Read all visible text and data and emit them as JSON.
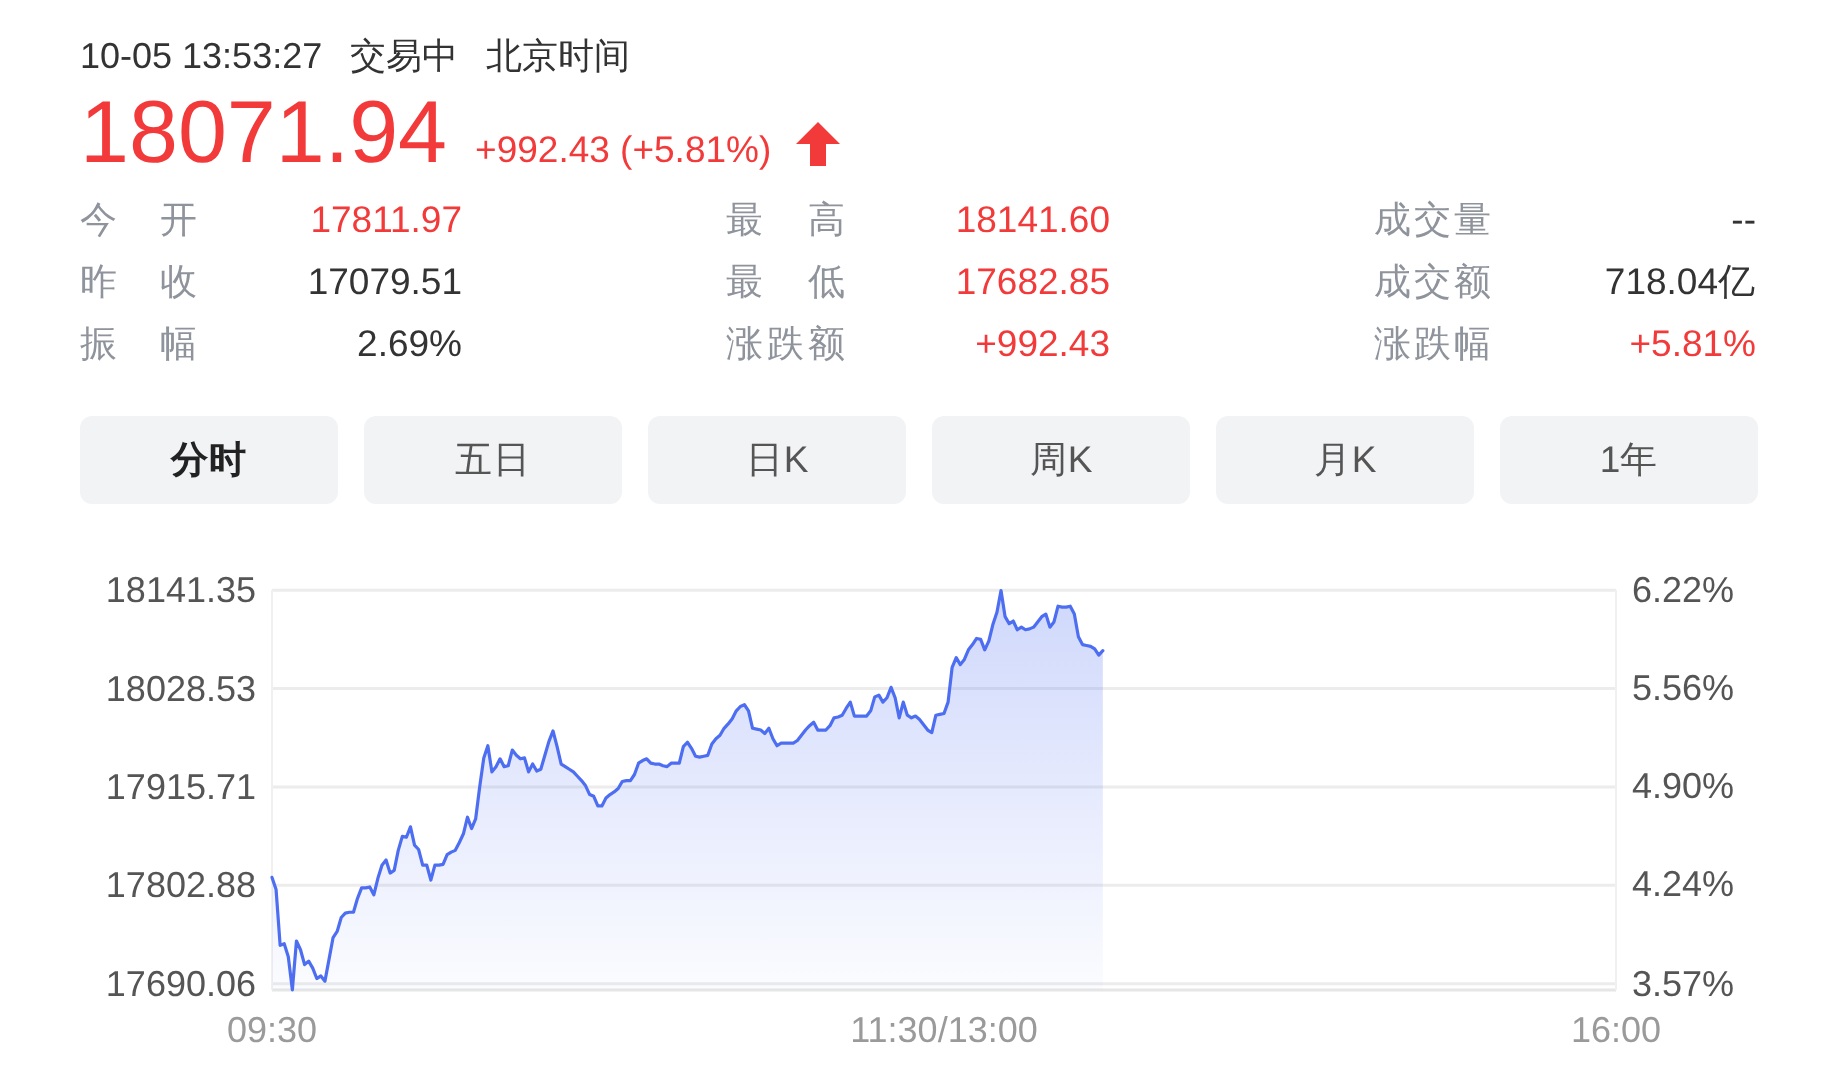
{
  "chart_data": [
    {
      "type": "other",
      "annotations": [
        "10-05 13:53:27",
        "交易中",
        "北京时间",
        "18071.94",
        "+992.43 (+5.81%)",
        "今 开",
        "17811.97",
        "最 高",
        "18141.60",
        "成交量",
        "--",
        "昨 收",
        "17079.51",
        "最 低",
        "17682.85",
        "成交额",
        "718.04亿",
        "振 幅",
        "2.69%",
        "涨跌额",
        "+992.43",
        "涨跌幅",
        "+5.81%",
        "分时",
        "五日",
        "日K",
        "周K",
        "月K",
        "1年"
      ]
    },
    {
      "type": "area",
      "categories": [
        "09:30",
        null,
        null,
        null,
        null,
        null,
        null,
        null,
        null,
        null,
        null,
        null,
        null,
        null,
        null,
        null,
        null,
        null,
        null,
        null,
        null,
        null,
        null,
        null,
        null,
        null,
        null,
        null,
        null,
        null,
        null,
        null,
        null,
        null,
        null,
        null,
        null,
        null,
        null,
        null,
        null,
        null,
        null,
        null,
        null,
        null,
        null,
        null,
        null,
        null,
        null,
        null,
        null,
        null,
        null,
        null,
        null,
        null,
        null,
        null,
        null,
        null,
        null,
        null,
        null,
        null,
        null,
        null,
        null,
        null,
        null,
        null,
        null,
        null,
        null,
        null,
        null,
        null,
        null,
        null,
        null,
        null,
        null,
        null,
        null,
        null,
        null,
        null,
        null,
        null,
        null,
        null,
        null,
        null,
        null,
        null,
        null,
        null,
        null,
        null,
        null,
        null,
        null,
        null,
        null,
        null,
        null,
        null,
        null,
        null,
        null,
        null,
        null,
        null,
        null,
        null,
        null,
        null,
        null,
        null,
        null,
        null,
        null,
        null,
        null,
        null,
        null,
        null,
        null,
        null,
        null,
        null,
        null,
        null,
        null,
        null,
        null,
        null,
        null,
        null,
        null,
        null,
        null,
        null,
        null,
        null,
        null,
        null,
        null,
        null,
        null,
        null,
        null,
        null,
        null,
        null,
        null,
        null,
        null,
        null,
        null,
        null,
        null,
        null,
        null,
        "11:30/13:00",
        null,
        null,
        null,
        null,
        null,
        null,
        null,
        null,
        null,
        null,
        null,
        null,
        null,
        null,
        null,
        null,
        null,
        null,
        null,
        null,
        null,
        null,
        null,
        null,
        null,
        null,
        null,
        null,
        null,
        null,
        null,
        null,
        null,
        null,
        null,
        null,
        null,
        null,
        null,
        null,
        null,
        null,
        null,
        null,
        null,
        null,
        null,
        null,
        null,
        null,
        null,
        null,
        null,
        null,
        null,
        null,
        null,
        null,
        null,
        null,
        null,
        null,
        null,
        null,
        null,
        null,
        null,
        null,
        null,
        null,
        null,
        null,
        null,
        null,
        null,
        null,
        null,
        null,
        null,
        null,
        null,
        null,
        null,
        null,
        null,
        null,
        null,
        null,
        null,
        null,
        null,
        null,
        null,
        null,
        null,
        null,
        null,
        null,
        null,
        null,
        null,
        null,
        null,
        null,
        null,
        null,
        null,
        null,
        null,
        null,
        null,
        null,
        null,
        null,
        null,
        null,
        null,
        null,
        null,
        null,
        null,
        null,
        null,
        null,
        null,
        null,
        null,
        null,
        null,
        null,
        null,
        null,
        null,
        null,
        null,
        null,
        null,
        null,
        null,
        null,
        null,
        null,
        null,
        null,
        null,
        null,
        null,
        null,
        null,
        null,
        null,
        null,
        null,
        null,
        null,
        null,
        null,
        null,
        null,
        null,
        null,
        null,
        null,
        null,
        "16:00"
      ],
      "series": [
        {
          "color": "#4e6ef2",
          "values": [
            17812,
            17798,
            17734,
            17736,
            17721,
            17683,
            17739,
            17729,
            17712,
            17716,
            17708,
            17696,
            17699,
            17693,
            17718,
            17743,
            17750,
            17766,
            17771,
            17772,
            17772,
            17788,
            17800,
            17800,
            17801,
            17792,
            17811,
            17826,
            17832,
            17817,
            17820,
            17843,
            17859,
            17858,
            17870,
            17849,
            17844,
            17826,
            17826,
            17809,
            17826,
            17826,
            17827,
            17838,
            17841,
            17843,
            17852,
            17862,
            17881,
            17868,
            17879,
            17916,
            17949,
            17963,
            17933,
            17939,
            17948,
            17939,
            17940,
            17958,
            17952,
            17948,
            17949,
            17933,
            17942,
            17934,
            17936,
            17952,
            17968,
            17980,
            17962,
            17942,
            17939,
            17936,
            17933,
            17928,
            17923,
            17917,
            17907,
            17905,
            17894,
            17894,
            17903,
            17907,
            17910,
            17914,
            17922,
            17923,
            17923,
            17930,
            17943,
            17946,
            17948,
            17943,
            17942,
            17942,
            17940,
            17939,
            17943,
            17943,
            17943,
            17962,
            17967,
            17960,
            17951,
            17950,
            17951,
            17952,
            17965,
            17971,
            17975,
            17983,
            17988,
            17994,
            18003,
            18008,
            18010,
            18003,
            17983,
            17982,
            17981,
            17977,
            17983,
            17971,
            17963,
            17966,
            17966,
            17966,
            17966,
            17969,
            17975,
            17981,
            17986,
            17990,
            17981,
            17981,
            17981,
            17986,
            17995,
            17996,
            17998,
            18006,
            18013,
            17997,
            17997,
            17997,
            17997,
            18003,
            18019,
            18021,
            18013,
            18018,
            18030,
            18018,
            17995,
            18013,
            17998,
            17995,
            17997,
            17993,
            17987,
            17981,
            17978,
            17998,
            17999,
            18000,
            18013,
            18053,
            18064,
            18056,
            18062,
            18073,
            18079,
            18086,
            18085,
            18073,
            18083,
            18102,
            18116,
            18141,
            18111,
            18103,
            18106,
            18096,
            18099,
            18096,
            18097,
            18099,
            18105,
            18111,
            18114,
            18099,
            18105,
            18123,
            18122,
            18122,
            18123,
            18114,
            18088,
            18079,
            18078,
            18077,
            18074,
            18067,
            18072,
            null,
            null,
            null,
            null,
            null,
            null,
            null,
            null,
            null,
            null,
            null,
            null,
            null,
            null,
            null,
            null,
            null,
            null,
            null,
            null,
            null,
            null,
            null,
            null,
            null,
            null,
            null,
            null,
            null,
            null,
            null,
            null,
            null,
            null,
            null,
            null,
            null,
            null,
            null,
            null,
            null,
            null,
            null,
            null,
            null,
            null,
            null,
            null,
            null,
            null,
            null,
            null,
            null,
            null,
            null,
            null,
            null,
            null,
            null,
            null,
            null,
            null,
            null,
            null,
            null,
            null,
            null,
            null,
            null,
            null,
            null,
            null,
            null,
            null,
            null,
            null,
            null,
            null,
            null,
            null,
            null,
            null,
            null,
            null,
            null,
            null,
            null,
            null,
            null,
            null,
            null,
            null,
            null,
            null,
            null,
            null,
            null,
            null,
            null,
            null,
            null,
            null,
            null,
            null,
            null,
            null,
            null,
            null,
            null,
            null,
            null,
            null,
            null,
            null,
            null,
            null,
            null,
            null,
            null,
            null,
            null,
            null,
            null,
            null,
            null,
            null
          ]
        }
      ],
      "ylim": [
        17682.85,
        18141.6
      ],
      "yticks": [
        17690.06,
        17802.88,
        17915.71,
        18028.53,
        18141.35
      ],
      "y2lim": [
        3.53,
        6.22
      ],
      "y2ticks": [
        {
          "value": 3.57,
          "label": "3.57%"
        },
        {
          "value": 4.24,
          "label": "4.24%"
        },
        {
          "value": 4.9,
          "label": "4.90%"
        },
        {
          "value": 5.56,
          "label": "5.56%"
        },
        {
          "value": 6.22,
          "label": "6.22%"
        }
      ],
      "grid": "y"
    }
  ]
}
